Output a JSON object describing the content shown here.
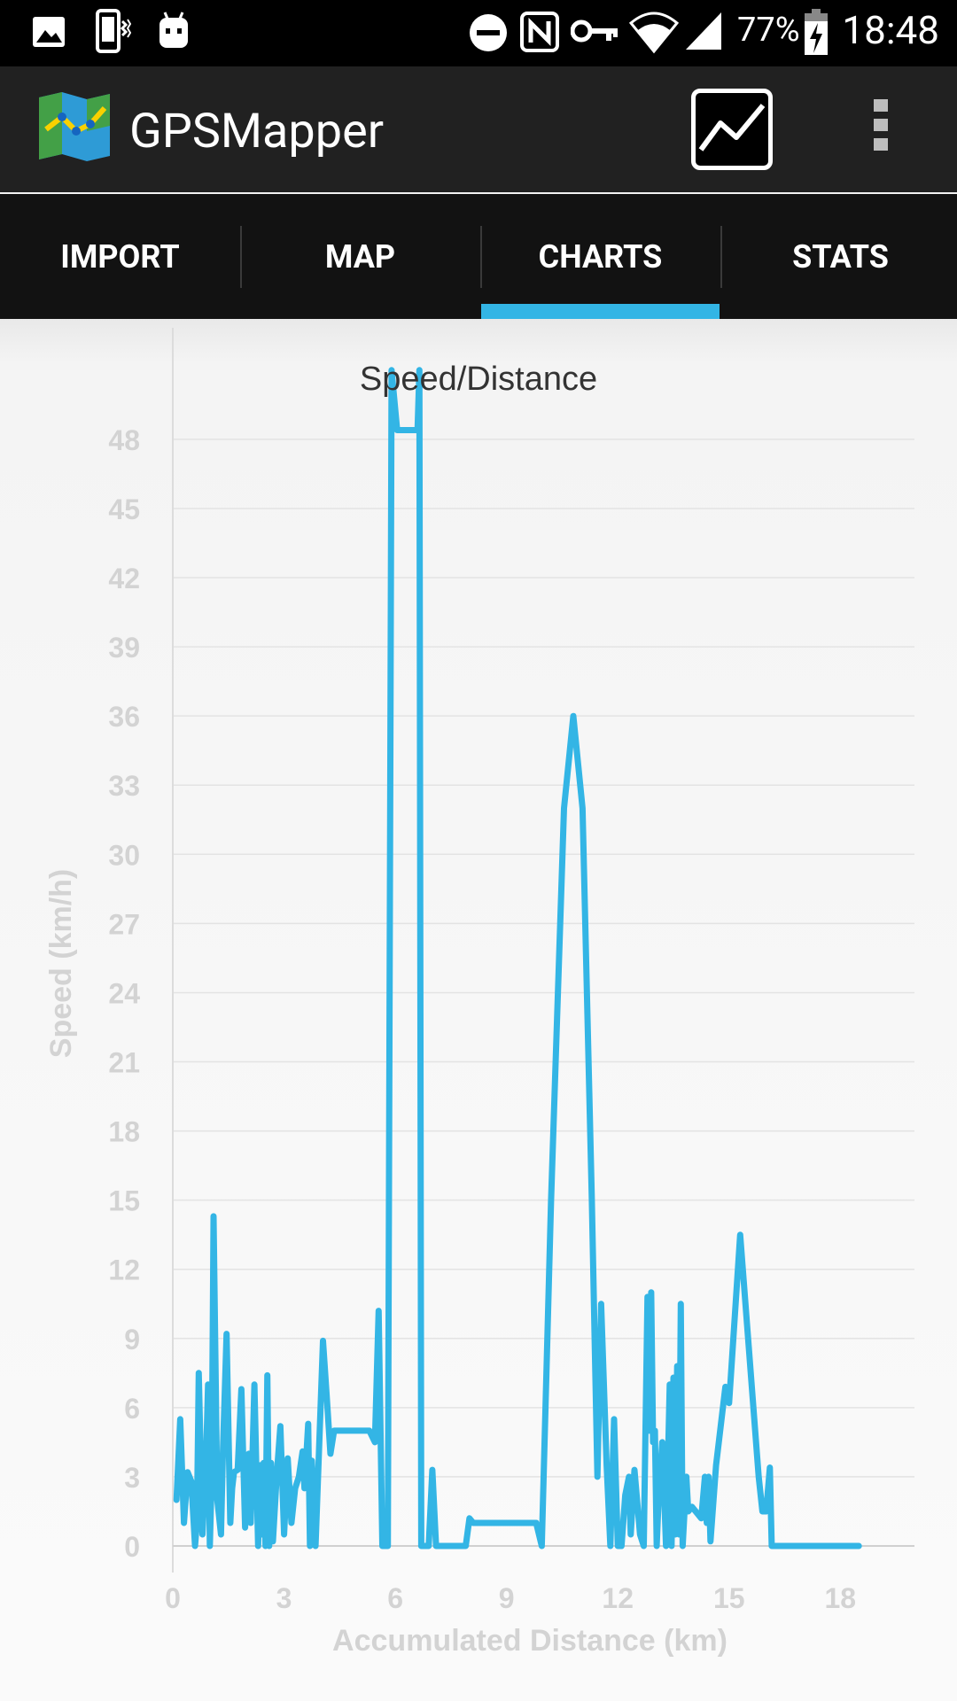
{
  "status_bar": {
    "time": "18:48",
    "battery_percent": "77%",
    "icons": [
      "image-icon",
      "phone-vibrate-icon",
      "android-icon",
      "dnd-icon",
      "nfc-icon",
      "vpn-key-icon",
      "wifi-icon",
      "signal-icon",
      "battery-charging-icon"
    ]
  },
  "app_bar": {
    "title": "GPSMapper",
    "logo_icon": "map-logo-icon",
    "action_icon": "line-chart-icon",
    "menu_icon": "overflow-menu-icon"
  },
  "tabs": [
    {
      "label": "IMPORT",
      "selected": false
    },
    {
      "label": "MAP",
      "selected": false
    },
    {
      "label": "CHARTS",
      "selected": true
    },
    {
      "label": "STATS",
      "selected": false
    }
  ],
  "colors": {
    "accent": "#33b5e5",
    "line": "#33b5e5",
    "axis_text": "#d3d3d3"
  },
  "chart_data": {
    "type": "line",
    "title": "Speed/Distance",
    "xlabel": "Accumulated Distance (km)",
    "ylabel": "Speed (km/h)",
    "xlim": [
      0,
      20
    ],
    "ylim": [
      0,
      51.3
    ],
    "xticks": [
      0,
      3,
      6,
      9,
      12,
      15,
      18
    ],
    "yticks": [
      0,
      3,
      6,
      9,
      12,
      15,
      18,
      21,
      24,
      27,
      30,
      33,
      36,
      39,
      42,
      45,
      48
    ],
    "grid": true,
    "series": [
      {
        "values": [
          [
            0.1,
            2
          ],
          [
            0.2,
            5.5
          ],
          [
            0.3,
            1
          ],
          [
            0.4,
            3.2
          ],
          [
            0.5,
            2.8
          ],
          [
            0.6,
            0
          ],
          [
            0.65,
            1
          ],
          [
            0.7,
            7.5
          ],
          [
            0.8,
            0.5
          ],
          [
            0.9,
            4
          ],
          [
            0.95,
            7
          ],
          [
            1.0,
            0
          ],
          [
            1.05,
            3
          ],
          [
            1.1,
            14.3
          ],
          [
            1.2,
            2
          ],
          [
            1.3,
            0.5
          ],
          [
            1.35,
            4
          ],
          [
            1.45,
            9.2
          ],
          [
            1.55,
            1
          ],
          [
            1.6,
            2.5
          ],
          [
            1.65,
            3.2
          ],
          [
            1.75,
            3.3
          ],
          [
            1.85,
            6.8
          ],
          [
            1.95,
            0.8
          ],
          [
            2.05,
            4
          ],
          [
            2.1,
            1
          ],
          [
            2.2,
            7
          ],
          [
            2.3,
            0
          ],
          [
            2.35,
            3.5
          ],
          [
            2.4,
            0.5
          ],
          [
            2.45,
            3.6
          ],
          [
            2.5,
            0
          ],
          [
            2.55,
            7.4
          ],
          [
            2.6,
            0
          ],
          [
            2.65,
            3.6
          ],
          [
            2.7,
            0.2
          ],
          [
            2.8,
            3
          ],
          [
            2.9,
            5.2
          ],
          [
            3.0,
            0.5
          ],
          [
            3.1,
            3.8
          ],
          [
            3.2,
            1
          ],
          [
            3.3,
            2.5
          ],
          [
            3.4,
            3
          ],
          [
            3.5,
            4.1
          ],
          [
            3.55,
            2.5
          ],
          [
            3.65,
            5.3
          ],
          [
            3.7,
            0
          ],
          [
            3.75,
            3.7
          ],
          [
            3.85,
            0
          ],
          [
            4.05,
            8.9
          ],
          [
            4.15,
            6.5
          ],
          [
            4.25,
            4
          ],
          [
            4.35,
            5
          ],
          [
            5.3,
            5
          ],
          [
            5.45,
            4.5
          ],
          [
            5.55,
            10.2
          ],
          [
            5.65,
            0
          ],
          [
            5.8,
            0
          ],
          [
            5.9,
            51
          ],
          [
            6.05,
            48.4
          ],
          [
            6.6,
            48.4
          ],
          [
            6.65,
            51
          ],
          [
            6.7,
            0
          ],
          [
            6.9,
            0
          ],
          [
            7.0,
            3.3
          ],
          [
            7.1,
            0
          ],
          [
            7.9,
            0
          ],
          [
            8.0,
            1.2
          ],
          [
            8.1,
            1
          ],
          [
            9.8,
            1
          ],
          [
            9.95,
            0
          ],
          [
            10.2,
            15
          ],
          [
            10.55,
            32
          ],
          [
            10.8,
            36
          ],
          [
            11.05,
            32
          ],
          [
            11.3,
            15
          ],
          [
            11.45,
            3
          ],
          [
            11.55,
            10.5
          ],
          [
            11.7,
            3.5
          ],
          [
            11.8,
            0
          ],
          [
            11.9,
            5.5
          ],
          [
            12.0,
            0
          ],
          [
            12.1,
            0
          ],
          [
            12.2,
            2.2
          ],
          [
            12.3,
            3
          ],
          [
            12.35,
            0.5
          ],
          [
            12.45,
            3.3
          ],
          [
            12.6,
            0.5
          ],
          [
            12.7,
            0
          ],
          [
            12.8,
            10.8
          ],
          [
            12.85,
            5
          ],
          [
            12.9,
            11
          ],
          [
            12.95,
            4.5
          ],
          [
            13.0,
            5
          ],
          [
            13.05,
            0
          ],
          [
            13.1,
            2
          ],
          [
            13.2,
            4.5
          ],
          [
            13.3,
            0
          ],
          [
            13.4,
            7
          ],
          [
            13.45,
            0
          ],
          [
            13.5,
            7.3
          ],
          [
            13.55,
            0.5
          ],
          [
            13.6,
            7.8
          ],
          [
            13.65,
            0.5
          ],
          [
            13.7,
            10.5
          ],
          [
            13.75,
            0
          ],
          [
            13.85,
            3
          ],
          [
            13.9,
            1.5
          ],
          [
            14.0,
            1.7
          ],
          [
            14.1,
            1.5
          ],
          [
            14.25,
            1.2
          ],
          [
            14.35,
            3
          ],
          [
            14.4,
            1
          ],
          [
            14.45,
            3
          ],
          [
            14.5,
            0.2
          ],
          [
            14.65,
            3.5
          ],
          [
            14.9,
            6.9
          ],
          [
            15.0,
            6.2
          ],
          [
            15.3,
            13.5
          ],
          [
            15.8,
            3
          ],
          [
            15.9,
            1.5
          ],
          [
            16.0,
            1.5
          ],
          [
            16.1,
            3.4
          ],
          [
            16.15,
            0
          ],
          [
            16.9,
            0
          ],
          [
            18.5,
            0
          ]
        ]
      }
    ]
  }
}
